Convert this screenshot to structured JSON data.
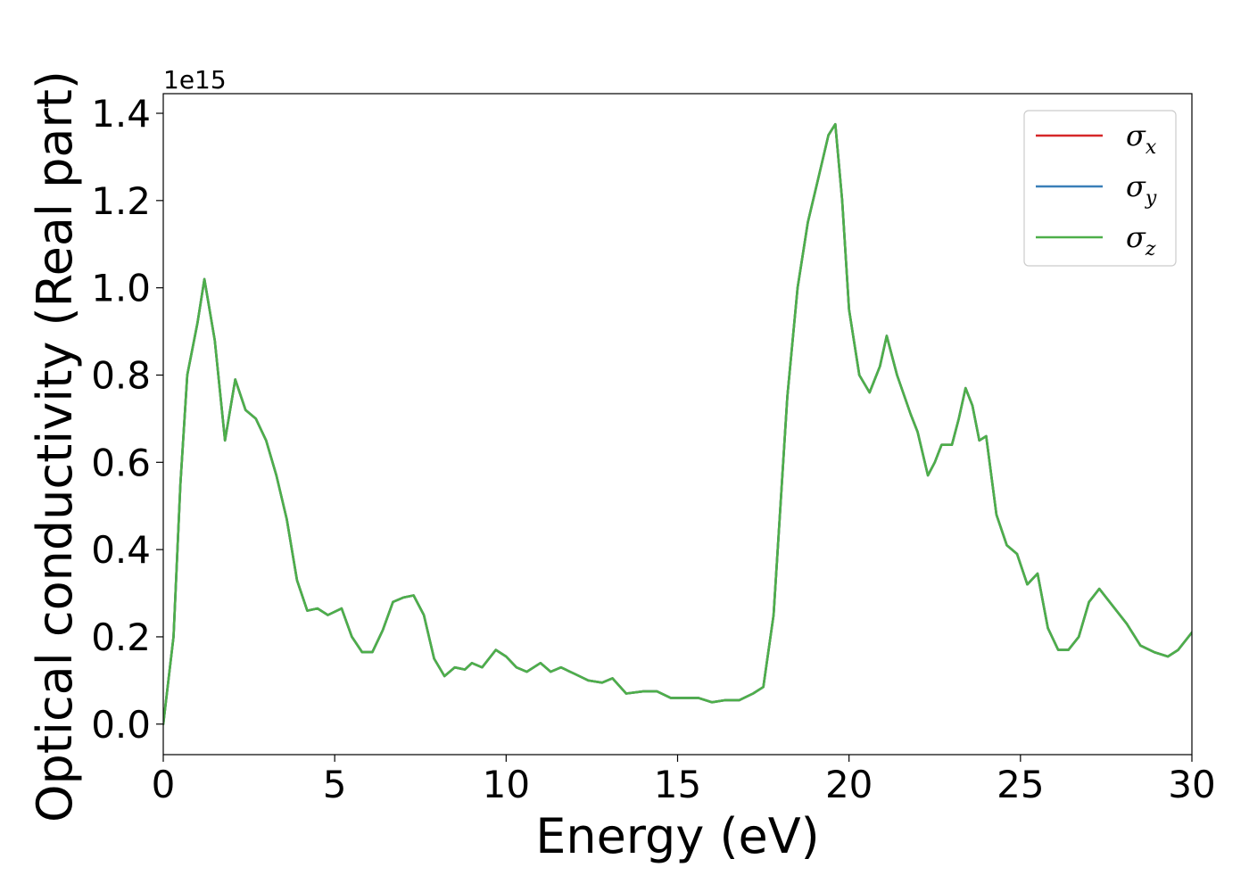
{
  "chart_data": {
    "type": "line",
    "title": "",
    "xlabel": "Energy (eV)",
    "ylabel": "Optical conductivity (Real part)",
    "y_offset_label": "1e15",
    "xlim": [
      0,
      30
    ],
    "ylim": [
      -0.07,
      1.445
    ],
    "x_ticks": [
      0,
      5,
      10,
      15,
      20,
      25,
      30
    ],
    "x_tick_labels": [
      "0",
      "5",
      "10",
      "15",
      "20",
      "25",
      "30"
    ],
    "y_ticks": [
      0.0,
      0.2,
      0.4,
      0.6,
      0.8,
      1.0,
      1.2,
      1.4
    ],
    "y_tick_labels": [
      "0.0",
      "0.2",
      "0.4",
      "0.6",
      "0.8",
      "1.0",
      "1.2",
      "1.4"
    ],
    "grid": false,
    "legend_position": "top-right",
    "x": [
      0.0,
      0.3,
      0.5,
      0.7,
      1.0,
      1.2,
      1.5,
      1.8,
      2.1,
      2.4,
      2.7,
      3.0,
      3.3,
      3.6,
      3.9,
      4.2,
      4.5,
      4.8,
      5.2,
      5.5,
      5.8,
      6.1,
      6.4,
      6.7,
      7.0,
      7.3,
      7.6,
      7.9,
      8.2,
      8.5,
      8.8,
      9.0,
      9.3,
      9.7,
      10.0,
      10.3,
      10.6,
      11.0,
      11.3,
      11.6,
      12.0,
      12.4,
      12.8,
      13.1,
      13.5,
      14.0,
      14.4,
      14.8,
      15.2,
      15.6,
      16.0,
      16.4,
      16.8,
      17.2,
      17.5,
      17.8,
      18.0,
      18.2,
      18.5,
      18.8,
      19.1,
      19.4,
      19.6,
      19.8,
      20.0,
      20.3,
      20.6,
      20.9,
      21.1,
      21.4,
      21.8,
      22.0,
      22.3,
      22.5,
      22.7,
      23.0,
      23.2,
      23.4,
      23.6,
      23.8,
      24.0,
      24.3,
      24.6,
      24.9,
      25.2,
      25.5,
      25.8,
      26.1,
      26.4,
      26.7,
      27.0,
      27.3,
      27.7,
      28.1,
      28.5,
      28.9,
      29.3,
      29.6,
      30.0
    ],
    "series": [
      {
        "name": "σ_x",
        "legend_main": "σ",
        "legend_sub": "x",
        "color": "#d62728",
        "values": [
          0.0,
          0.2,
          0.55,
          0.8,
          0.92,
          1.02,
          0.88,
          0.65,
          0.79,
          0.72,
          0.7,
          0.65,
          0.57,
          0.47,
          0.33,
          0.26,
          0.265,
          0.25,
          0.265,
          0.2,
          0.165,
          0.165,
          0.215,
          0.28,
          0.29,
          0.295,
          0.25,
          0.15,
          0.11,
          0.13,
          0.125,
          0.14,
          0.13,
          0.17,
          0.155,
          0.13,
          0.12,
          0.14,
          0.12,
          0.13,
          0.115,
          0.1,
          0.095,
          0.105,
          0.07,
          0.075,
          0.075,
          0.06,
          0.06,
          0.06,
          0.05,
          0.055,
          0.055,
          0.07,
          0.085,
          0.25,
          0.5,
          0.75,
          1.0,
          1.15,
          1.25,
          1.35,
          1.375,
          1.2,
          0.95,
          0.8,
          0.76,
          0.82,
          0.89,
          0.8,
          0.71,
          0.67,
          0.57,
          0.6,
          0.64,
          0.64,
          0.7,
          0.77,
          0.73,
          0.65,
          0.66,
          0.48,
          0.41,
          0.39,
          0.32,
          0.345,
          0.22,
          0.17,
          0.17,
          0.2,
          0.28,
          0.31,
          0.27,
          0.23,
          0.18,
          0.165,
          0.155,
          0.17,
          0.21
        ]
      },
      {
        "name": "σ_y",
        "legend_main": "σ",
        "legend_sub": "y",
        "color": "#3a7fb8",
        "values": [
          0.0,
          0.2,
          0.55,
          0.8,
          0.92,
          1.02,
          0.88,
          0.65,
          0.79,
          0.72,
          0.7,
          0.65,
          0.57,
          0.47,
          0.33,
          0.26,
          0.265,
          0.25,
          0.265,
          0.2,
          0.165,
          0.165,
          0.215,
          0.28,
          0.29,
          0.295,
          0.25,
          0.15,
          0.11,
          0.13,
          0.125,
          0.14,
          0.13,
          0.17,
          0.155,
          0.13,
          0.12,
          0.14,
          0.12,
          0.13,
          0.115,
          0.1,
          0.095,
          0.105,
          0.07,
          0.075,
          0.075,
          0.06,
          0.06,
          0.06,
          0.05,
          0.055,
          0.055,
          0.07,
          0.085,
          0.25,
          0.5,
          0.75,
          1.0,
          1.15,
          1.25,
          1.35,
          1.375,
          1.2,
          0.95,
          0.8,
          0.76,
          0.82,
          0.89,
          0.8,
          0.71,
          0.67,
          0.57,
          0.6,
          0.64,
          0.64,
          0.7,
          0.77,
          0.73,
          0.65,
          0.66,
          0.48,
          0.41,
          0.39,
          0.32,
          0.345,
          0.22,
          0.17,
          0.17,
          0.2,
          0.28,
          0.31,
          0.27,
          0.23,
          0.18,
          0.165,
          0.155,
          0.17,
          0.21
        ]
      },
      {
        "name": "σ_z",
        "legend_main": "σ",
        "legend_sub": "z",
        "color": "#4daf4a",
        "values": [
          0.0,
          0.2,
          0.55,
          0.8,
          0.92,
          1.02,
          0.88,
          0.65,
          0.79,
          0.72,
          0.7,
          0.65,
          0.57,
          0.47,
          0.33,
          0.26,
          0.265,
          0.25,
          0.265,
          0.2,
          0.165,
          0.165,
          0.215,
          0.28,
          0.29,
          0.295,
          0.25,
          0.15,
          0.11,
          0.13,
          0.125,
          0.14,
          0.13,
          0.17,
          0.155,
          0.13,
          0.12,
          0.14,
          0.12,
          0.13,
          0.115,
          0.1,
          0.095,
          0.105,
          0.07,
          0.075,
          0.075,
          0.06,
          0.06,
          0.06,
          0.05,
          0.055,
          0.055,
          0.07,
          0.085,
          0.25,
          0.5,
          0.75,
          1.0,
          1.15,
          1.25,
          1.35,
          1.375,
          1.2,
          0.95,
          0.8,
          0.76,
          0.82,
          0.89,
          0.8,
          0.71,
          0.67,
          0.57,
          0.6,
          0.64,
          0.64,
          0.7,
          0.77,
          0.73,
          0.65,
          0.66,
          0.48,
          0.41,
          0.39,
          0.32,
          0.345,
          0.22,
          0.17,
          0.17,
          0.2,
          0.28,
          0.31,
          0.27,
          0.23,
          0.18,
          0.165,
          0.155,
          0.17,
          0.21
        ]
      }
    ]
  }
}
